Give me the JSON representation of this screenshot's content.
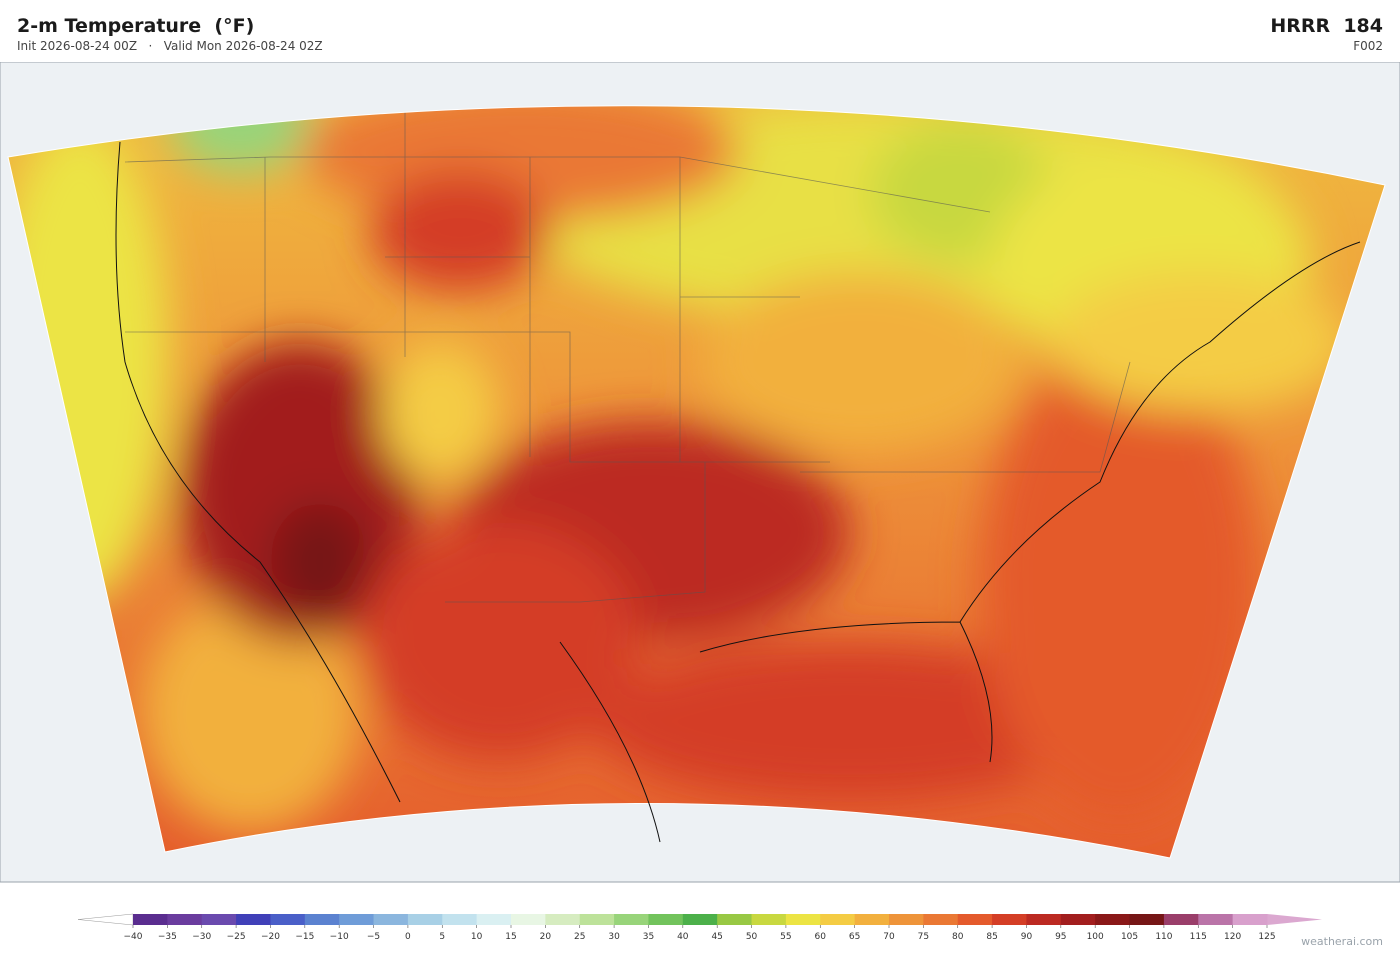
{
  "header": {
    "title": "2-m Temperature  (°F)",
    "subtitle": "Init 2026-08-24 00Z   ·   Valid Mon 2026-08-24 02Z",
    "model": "HRRR  184",
    "forecast_hour": "F002"
  },
  "colorbar": {
    "ticks": [
      {
        "value": -40,
        "label": "−40"
      },
      {
        "value": -35,
        "label": "−35"
      },
      {
        "value": -30,
        "label": "−30"
      },
      {
        "value": -25,
        "label": "−25"
      },
      {
        "value": -20,
        "label": "−20"
      },
      {
        "value": -15,
        "label": "−15"
      },
      {
        "value": -10,
        "label": "−10"
      },
      {
        "value": -5,
        "label": "−5"
      },
      0,
      5,
      10,
      15,
      20,
      25,
      30,
      35,
      40,
      45,
      50,
      55,
      60,
      65,
      70,
      75,
      80,
      85,
      90,
      95,
      100,
      105,
      110,
      115,
      120,
      125
    ],
    "colors": [
      "#5a2d8f",
      "#6a3c9e",
      "#6a4aae",
      "#4040b8",
      "#4a5fc8",
      "#5b82d0",
      "#6f9cd8",
      "#8bb6de",
      "#a8d0e6",
      "#c2e2ee",
      "#daf0f2",
      "#e8f6e4",
      "#d6ecc0",
      "#bde29a",
      "#98d47a",
      "#72c35c",
      "#4cb04a",
      "#98c844",
      "#c8d840",
      "#ece444",
      "#f4cc44",
      "#f2b03e",
      "#ee943a",
      "#ea7834",
      "#e45a2c",
      "#d43e26",
      "#bc2a22",
      "#a21e1e",
      "#8a1818",
      "#761616",
      "#9a3e6a",
      "#ba74a8",
      "#d8a0cc"
    ],
    "extend_colors": [
      "#ffffff",
      "#dba8d0"
    ]
  },
  "watermark": "weatherai.com"
}
